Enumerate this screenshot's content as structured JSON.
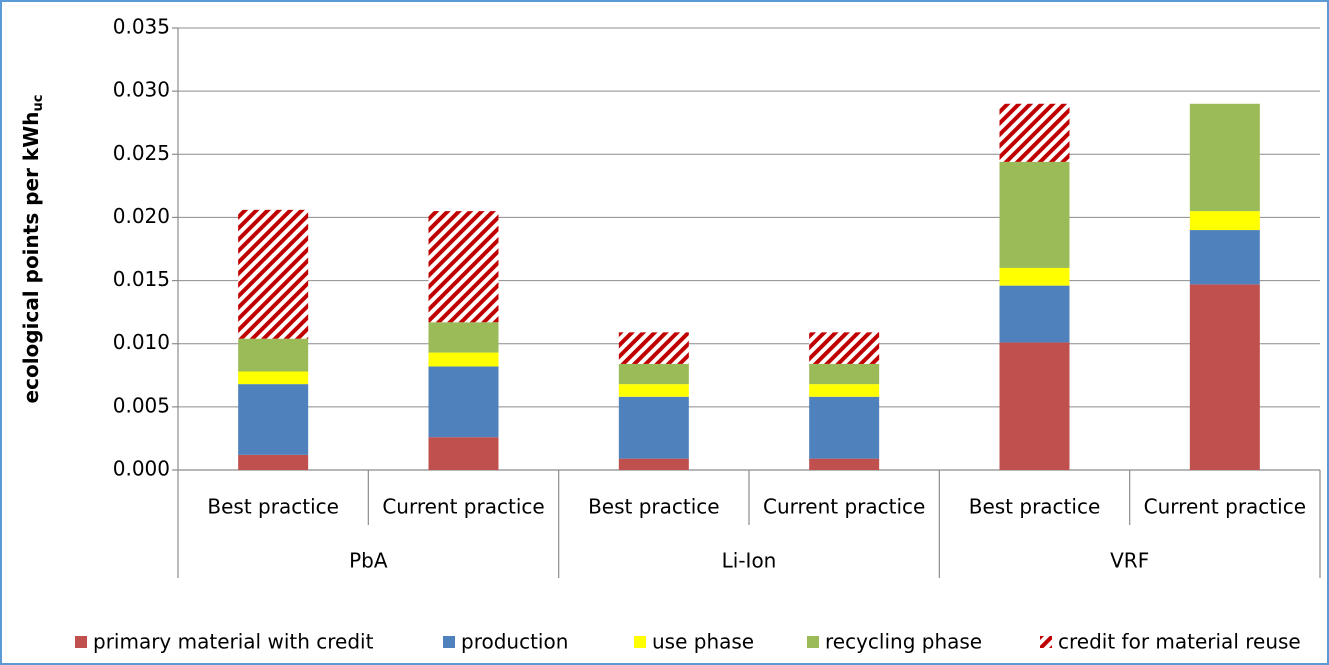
{
  "chart_data": {
    "type": "stacked_bar",
    "y_label": "ecological points per kWh",
    "y_label_sub": "uc",
    "categories": [
      "Best practice",
      "Current practice",
      "Best practice",
      "Current practice",
      "Best practice",
      "Current practice"
    ],
    "groups": [
      "PbA",
      "Li-Ion",
      "VRF"
    ],
    "series": [
      {
        "name": "primary material with credit",
        "color": "#c0504d",
        "values": [
          0.0012,
          0.0026,
          0.0009,
          0.0009,
          0.0101,
          0.0147
        ]
      },
      {
        "name": "production",
        "color": "#4f81bd",
        "values": [
          0.0056,
          0.0056,
          0.0049,
          0.0049,
          0.0045,
          0.0043
        ]
      },
      {
        "name": "use phase",
        "color": "#ffff00",
        "values": [
          0.001,
          0.0011,
          0.001,
          0.001,
          0.0014,
          0.0015
        ]
      },
      {
        "name": "recycling phase",
        "color": "#9bbb59",
        "values": [
          0.0026,
          0.0024,
          0.0016,
          0.0016,
          0.0084,
          0.0085
        ]
      },
      {
        "name": "credit for material reuse",
        "color": "#c00000",
        "hatch": true,
        "values": [
          0.0102,
          0.0088,
          0.0025,
          0.0025,
          0.0046,
          0.0
        ]
      }
    ],
    "ylim": [
      0,
      0.035
    ],
    "yticks": [
      {
        "value": 0,
        "label": "0.000"
      },
      {
        "value": 0.005,
        "label": "0.005"
      },
      {
        "value": 0.01,
        "label": "0.010"
      },
      {
        "value": 0.015,
        "label": "0.015"
      },
      {
        "value": 0.02,
        "label": "0.020"
      },
      {
        "value": 0.025,
        "label": "0.025"
      },
      {
        "value": 0.03,
        "label": "0.030"
      },
      {
        "value": 0.035,
        "label": "0.035"
      }
    ],
    "grid": true,
    "legend": "bottom"
  }
}
